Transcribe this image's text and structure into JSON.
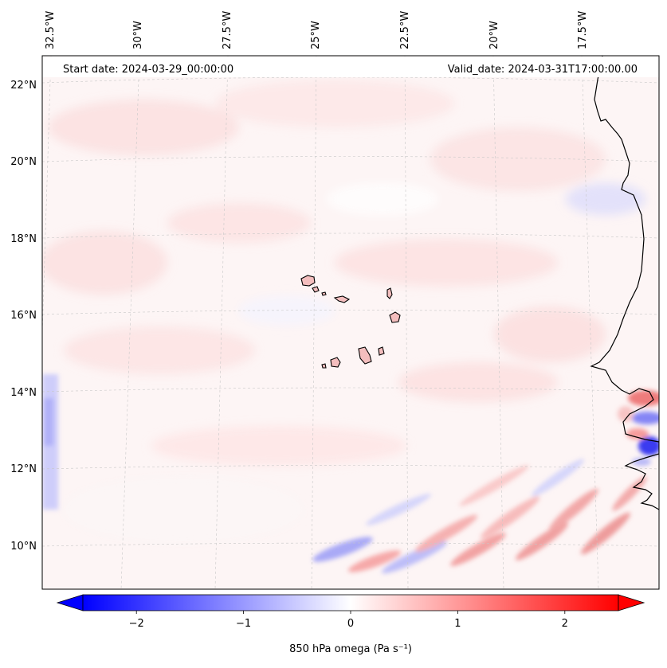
{
  "map": {
    "start_date_text": "Start date: 2024-03-29_00:00:00",
    "valid_date_text": "Valid_date: 2024-03-31T17:00:00.00",
    "lon_labels": [
      "32.5°W",
      "30°W",
      "27.5°W",
      "25°W",
      "22.5°W",
      "20°W",
      "17.5°W"
    ],
    "lat_labels": [
      "22°N",
      "20°N",
      "18°N",
      "16°N",
      "14°N",
      "12°N",
      "10°N"
    ],
    "grid_style": "dashed light gray",
    "projection": "Lambert conformal"
  },
  "colorbar": {
    "label": "850 hPa omega (Pa s⁻¹)",
    "ticks": [
      "−2",
      "−1",
      "0",
      "1",
      "2"
    ],
    "tick_values": [
      -2,
      -1,
      0,
      1,
      2
    ],
    "range": [
      -2.5,
      2.5
    ],
    "colormap": "bwr",
    "extend": "both",
    "colors": {
      "negative": "#0000ff",
      "zero": "#ffffff",
      "positive": "#ff0000"
    }
  }
}
